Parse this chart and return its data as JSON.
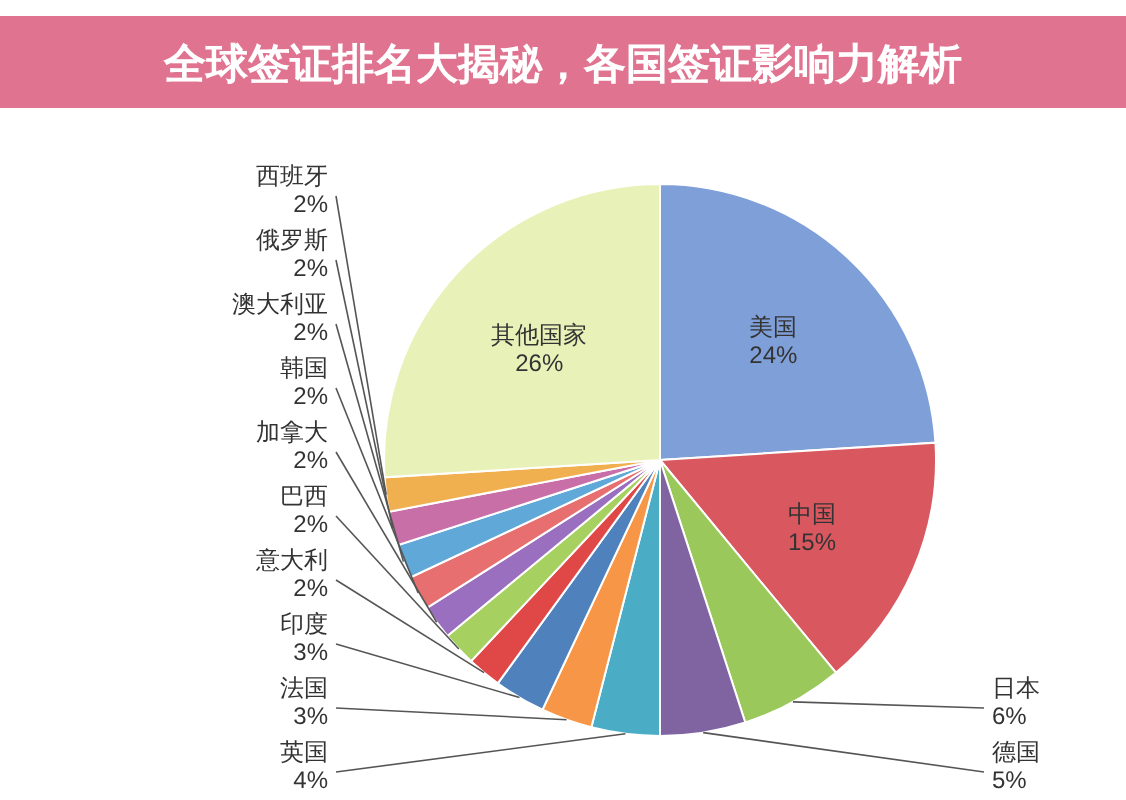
{
  "chart_data": {
    "type": "pie",
    "title": "全球签证排名大揭秘，各国签证影响力解析",
    "categories": [
      "美国",
      "中国",
      "日本",
      "德国",
      "英国",
      "法国",
      "印度",
      "意大利",
      "巴西",
      "加拿大",
      "韩国",
      "澳大利亚",
      "俄罗斯",
      "西班牙",
      "其他国家"
    ],
    "values": [
      24,
      15,
      6,
      5,
      4,
      3,
      3,
      2,
      2,
      2,
      2,
      2,
      2,
      2,
      26
    ],
    "value_labels": [
      "24%",
      "15%",
      "6%",
      "5%",
      "4%",
      "3%",
      "3%",
      "2%",
      "2%",
      "2%",
      "2%",
      "2%",
      "2%",
      "2%",
      "26%"
    ],
    "colors": [
      "#7f9fd8",
      "#d9585f",
      "#9bc85a",
      "#8064a2",
      "#4bacc6",
      "#f79646",
      "#4f81bd",
      "#e04848",
      "#a6d060",
      "#9a6fc0",
      "#e86f70",
      "#5fa8d8",
      "#c96fa8",
      "#f0b050",
      "#e8f2b8"
    ]
  }
}
